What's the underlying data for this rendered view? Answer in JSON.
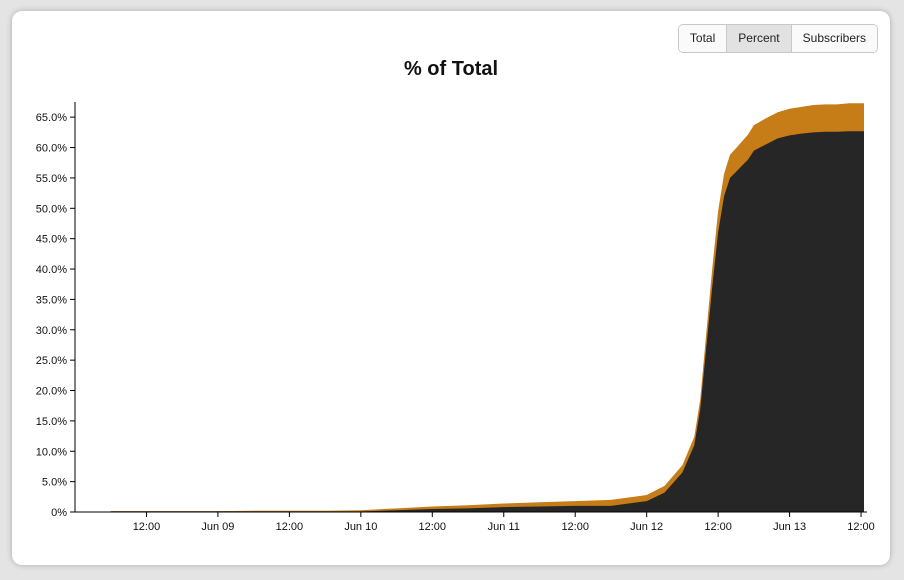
{
  "toolbar": {
    "buttons": [
      {
        "label": "Total",
        "active": false
      },
      {
        "label": "Percent",
        "active": true
      },
      {
        "label": "Subscribers",
        "active": false
      }
    ]
  },
  "chart_data": {
    "type": "area",
    "stacked": true,
    "title": "% of Total",
    "xlabel": "",
    "ylabel": "",
    "ylim": [
      0,
      67.5
    ],
    "y_ticks": [
      "0%",
      "5.0%",
      "10.0%",
      "15.0%",
      "20.0%",
      "25.0%",
      "30.0%",
      "35.0%",
      "40.0%",
      "45.0%",
      "50.0%",
      "55.0%",
      "60.0%",
      "65.0%"
    ],
    "x_ticks": [
      "12:00",
      "Jun 09",
      "12:00",
      "Jun 10",
      "12:00",
      "Jun 11",
      "12:00",
      "Jun 12",
      "12:00",
      "Jun 13",
      "12:00"
    ],
    "x_tick_times": [
      "2024-06-08 12:00",
      "2024-06-09 00:00",
      "2024-06-09 12:00",
      "2024-06-10 00:00",
      "2024-06-10 12:00",
      "2024-06-11 00:00",
      "2024-06-11 12:00",
      "2024-06-12 00:00",
      "2024-06-12 12:00",
      "2024-06-13 00:00",
      "2024-06-13 12:00"
    ],
    "colors": {
      "lower": "#262626",
      "upper": "#c67c17",
      "axis": "#000000"
    },
    "grid": false,
    "legend": "none",
    "x": [
      "2024-06-08 06:00",
      "2024-06-08 12:00",
      "2024-06-08 18:00",
      "2024-06-09 00:00",
      "2024-06-09 06:00",
      "2024-06-09 12:00",
      "2024-06-09 18:00",
      "2024-06-10 00:00",
      "2024-06-10 06:00",
      "2024-06-10 12:00",
      "2024-06-10 18:00",
      "2024-06-11 00:00",
      "2024-06-11 06:00",
      "2024-06-11 12:00",
      "2024-06-11 18:00",
      "2024-06-12 00:00",
      "2024-06-12 03:00",
      "2024-06-12 06:00",
      "2024-06-12 08:00",
      "2024-06-12 09:00",
      "2024-06-12 10:00",
      "2024-06-12 11:00",
      "2024-06-12 12:00",
      "2024-06-12 13:00",
      "2024-06-12 14:00",
      "2024-06-12 15:00",
      "2024-06-12 16:00",
      "2024-06-12 17:00",
      "2024-06-12 18:00",
      "2024-06-12 20:00",
      "2024-06-12 22:00",
      "2024-06-13 00:00",
      "2024-06-13 02:00",
      "2024-06-13 04:00",
      "2024-06-13 06:00",
      "2024-06-13 08:00",
      "2024-06-13 10:00",
      "2024-06-13 12:00",
      "2024-06-13 12:30"
    ],
    "series": [
      {
        "values": [
          0.1,
          0.1,
          0.1,
          0.1,
          0.1,
          0.1,
          0.1,
          0.1,
          0.3,
          0.5,
          0.6,
          0.8,
          0.9,
          1.0,
          1.0,
          1.8,
          3.2,
          6.5,
          11.0,
          17.0,
          27.0,
          37.0,
          46.0,
          52.0,
          55.0,
          56.0,
          57.0,
          58.0,
          59.5,
          60.5,
          61.5,
          62.0,
          62.3,
          62.5,
          62.6,
          62.6,
          62.7,
          62.7,
          62.7
        ]
      },
      {
        "values": [
          0.05,
          0.05,
          0.05,
          0.05,
          0.1,
          0.1,
          0.1,
          0.2,
          0.3,
          0.4,
          0.5,
          0.6,
          0.7,
          0.8,
          1.0,
          1.0,
          1.1,
          1.2,
          1.4,
          1.6,
          2.3,
          3.0,
          3.5,
          3.7,
          3.8,
          3.9,
          4.0,
          4.1,
          4.2,
          4.3,
          4.3,
          4.4,
          4.4,
          4.5,
          4.5,
          4.5,
          4.6,
          4.6,
          4.6
        ]
      }
    ]
  }
}
